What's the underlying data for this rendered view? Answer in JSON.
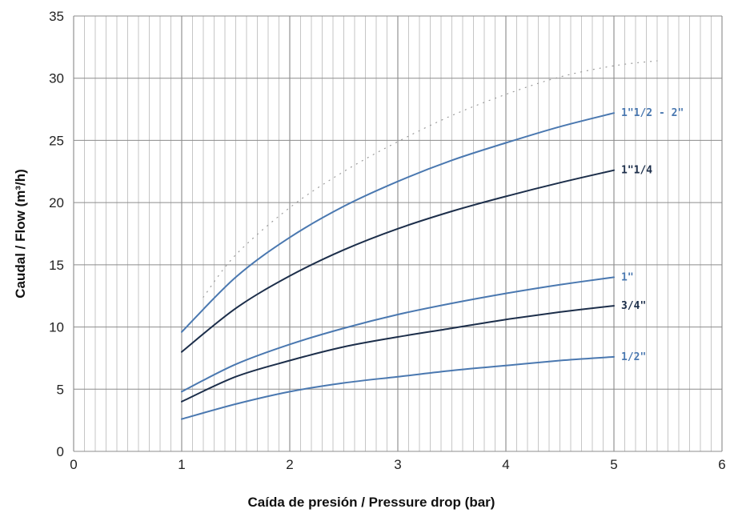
{
  "chart_data": {
    "type": "line",
    "title": "",
    "xlabel": "Caída de presión / Pressure drop (bar)",
    "ylabel": "Caudal / Flow (m³/h)",
    "xlim": [
      0,
      6
    ],
    "ylim": [
      0,
      35
    ],
    "x_ticks": [
      0,
      1,
      2,
      3,
      4,
      5,
      6
    ],
    "y_ticks": [
      0,
      5,
      10,
      15,
      20,
      25,
      30,
      35
    ],
    "grid": {
      "vertical_minor_step": 0.1,
      "horizontal_major_step": 5
    },
    "legend": "labels at right end of each curve",
    "series": [
      {
        "name": "1/2\"",
        "color": "#4a78b0",
        "points": [
          [
            1,
            2.6
          ],
          [
            1.5,
            3.8
          ],
          [
            2,
            4.8
          ],
          [
            2.5,
            5.5
          ],
          [
            3,
            6.0
          ],
          [
            3.5,
            6.5
          ],
          [
            4,
            6.9
          ],
          [
            4.5,
            7.3
          ],
          [
            5,
            7.6
          ]
        ]
      },
      {
        "name": "3/4\"",
        "color": "#1c2e4a",
        "points": [
          [
            1,
            4.0
          ],
          [
            1.5,
            6.0
          ],
          [
            2,
            7.3
          ],
          [
            2.5,
            8.4
          ],
          [
            3,
            9.2
          ],
          [
            3.5,
            9.9
          ],
          [
            4,
            10.6
          ],
          [
            4.5,
            11.2
          ],
          [
            5,
            11.7
          ]
        ]
      },
      {
        "name": "1\"",
        "color": "#4a78b0",
        "points": [
          [
            1,
            4.8
          ],
          [
            1.5,
            7.0
          ],
          [
            2,
            8.6
          ],
          [
            2.5,
            9.9
          ],
          [
            3,
            11.0
          ],
          [
            3.5,
            11.9
          ],
          [
            4,
            12.7
          ],
          [
            4.5,
            13.4
          ],
          [
            5,
            14.0
          ]
        ]
      },
      {
        "name": "1\"1/4",
        "color": "#1c2e4a",
        "points": [
          [
            1,
            8.0
          ],
          [
            1.5,
            11.5
          ],
          [
            2,
            14.1
          ],
          [
            2.5,
            16.2
          ],
          [
            3,
            17.9
          ],
          [
            3.5,
            19.3
          ],
          [
            4,
            20.5
          ],
          [
            4.5,
            21.6
          ],
          [
            5,
            22.6
          ]
        ]
      },
      {
        "name": "1\"1/2 - 2\"",
        "color": "#4a78b0",
        "points": [
          [
            1,
            9.6
          ],
          [
            1.5,
            14.0
          ],
          [
            2,
            17.2
          ],
          [
            2.5,
            19.7
          ],
          [
            3,
            21.7
          ],
          [
            3.5,
            23.4
          ],
          [
            4,
            24.8
          ],
          [
            4.5,
            26.1
          ],
          [
            5,
            27.2
          ]
        ]
      },
      {
        "name": "",
        "style": "dotted",
        "color": "#9a9a9a",
        "points": [
          [
            1.2,
            12.4
          ],
          [
            1.5,
            15.8
          ],
          [
            2,
            19.6
          ],
          [
            2.5,
            22.5
          ],
          [
            3,
            24.9
          ],
          [
            3.5,
            27.0
          ],
          [
            4,
            28.7
          ],
          [
            4.5,
            30.1
          ],
          [
            5,
            31.0
          ],
          [
            5.4,
            31.4
          ]
        ]
      }
    ]
  }
}
